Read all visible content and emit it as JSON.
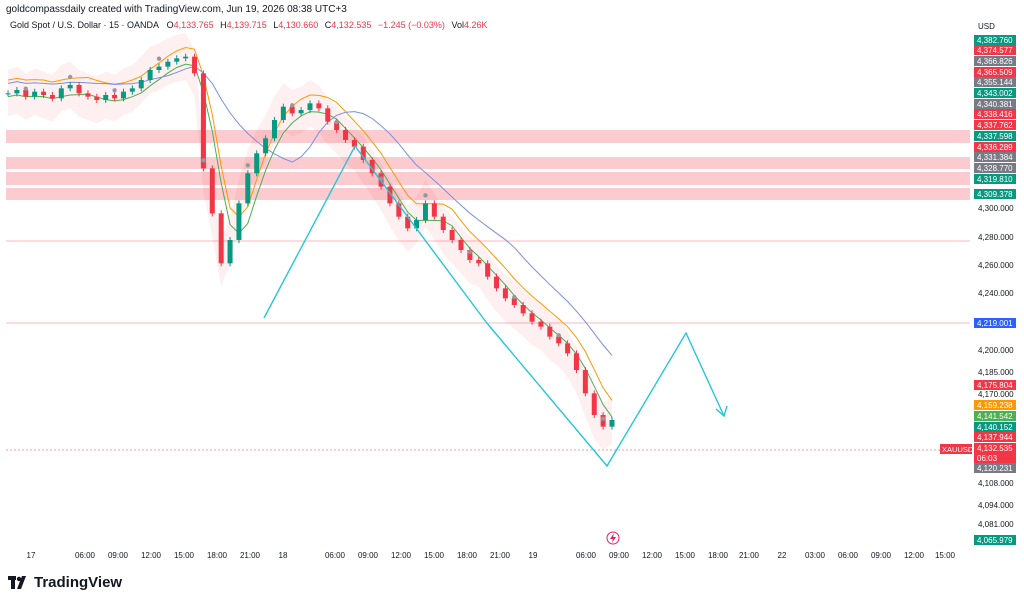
{
  "header": {
    "creator": "goldcompassdaily created with TradingView.com, Jun 19, 2026 08:38 UTC+3",
    "symbol": "Gold Spot / U.S. Dollar · 15 · OANDA",
    "open_label": "O",
    "open": "4,133.765",
    "high_label": "H",
    "high": "4,139.715",
    "low_label": "L",
    "low": "4,130.660",
    "close_label": "C",
    "close": "4,132.535",
    "change": "−1.245 (−0.03%)",
    "vol_label": "Vol",
    "vol": "4.26K"
  },
  "axis": {
    "currency": "USD",
    "price_ticks": [
      "4,300.000",
      "4,280.000",
      "4,260.000",
      "4,240.000",
      "4,200.000",
      "4,185.000",
      "4,170.000",
      "4,108.000",
      "4,094.000",
      "4,081.000"
    ],
    "time_ticks": [
      "17",
      "06:00",
      "09:00",
      "12:00",
      "15:00",
      "18:00",
      "21:00",
      "18",
      "06:00",
      "09:00",
      "12:00",
      "15:00",
      "18:00",
      "21:00",
      "19",
      "06:00",
      "09:00",
      "12:00",
      "15:00",
      "18:00",
      "21:00",
      "22",
      "03:00",
      "06:00",
      "09:00",
      "12:00",
      "15:00"
    ]
  },
  "price_tags": [
    {
      "text": "4,382.760",
      "color": "#089981"
    },
    {
      "text": "4,374.577",
      "color": "#f23645"
    },
    {
      "text": "4,366.826",
      "color": "#787b86"
    },
    {
      "text": "4,365.509",
      "color": "#f23645"
    },
    {
      "text": "4,355.144",
      "color": "#787b86"
    },
    {
      "text": "4,343.002",
      "color": "#089981"
    },
    {
      "text": "4,340.381",
      "color": "#787b86"
    },
    {
      "text": "4,338.416",
      "color": "#f23645"
    },
    {
      "text": "4,337.762",
      "color": "#f23645"
    },
    {
      "text": "4,337.598",
      "color": "#089981"
    },
    {
      "text": "4,336.289",
      "color": "#f23645"
    },
    {
      "text": "4,331.384",
      "color": "#787b86"
    },
    {
      "text": "4,328.770",
      "color": "#787b86"
    },
    {
      "text": "4,319.810",
      "color": "#089981"
    },
    {
      "text": "4,309.378",
      "color": "#089981"
    },
    {
      "text": "4,219.001",
      "color": "#2962ff"
    },
    {
      "text": "4,175.804",
      "color": "#f23645"
    },
    {
      "text": "4,159.238",
      "color": "#ff9800"
    },
    {
      "text": "4,141.542",
      "color": "#4caf50"
    },
    {
      "text": "4,140.152",
      "color": "#089981"
    },
    {
      "text": "4,137.944",
      "color": "#f23645"
    },
    {
      "text": "4,132.535",
      "color": "#f23645"
    },
    {
      "text": "06:03",
      "color": "#f23645"
    },
    {
      "text": "4,120.231",
      "color": "#787b86"
    },
    {
      "text": "4,065.979",
      "color": "#089981"
    }
  ],
  "symbol_tag": "XAUUSD",
  "brand": "TradingView",
  "chart_data": {
    "type": "line",
    "series": [
      {
        "values": [
          4328,
          4330,
          4326,
          4329,
          4327,
          4325,
          4331,
          4333,
          4328,
          4326,
          4324,
          4327,
          4325,
          4329,
          4331,
          4336,
          4342,
          4344,
          4347,
          4349,
          4350,
          4340,
          4283,
          4256,
          4226,
          4240,
          4262,
          4280,
          4292,
          4301,
          4312,
          4320,
          4316,
          4318,
          4322,
          4319,
          4311,
          4306,
          4300,
          4296,
          4288,
          4280,
          4272,
          4262,
          4254,
          4247,
          4252,
          4262,
          4254,
          4246,
          4240,
          4234,
          4228,
          4226,
          4218,
          4211,
          4205,
          4201,
          4196,
          4191,
          4188,
          4182,
          4178,
          4172,
          4162,
          4148,
          4135,
          4128,
          4132
        ]
      }
    ],
    "ylim": [
      4060,
      4386
    ]
  }
}
